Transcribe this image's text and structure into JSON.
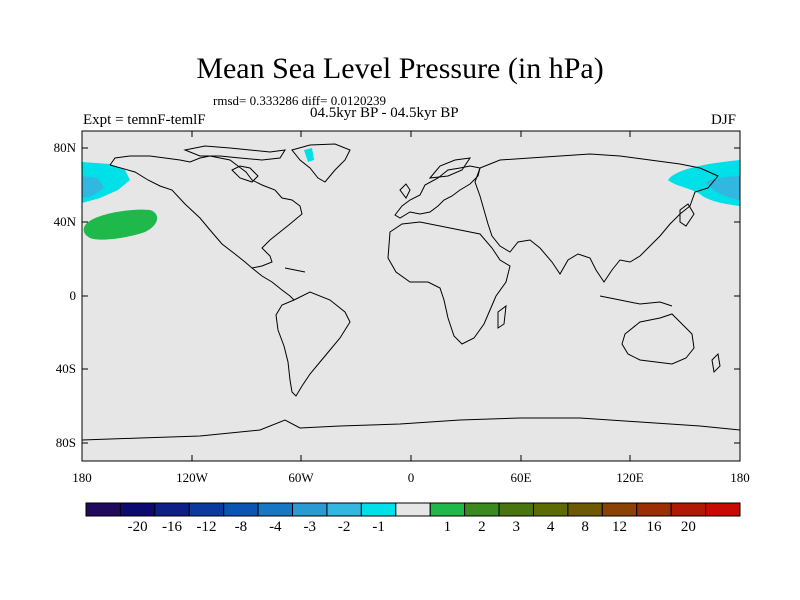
{
  "title": "Mean Sea Level Pressure (in hPa)",
  "stats": "rmsd= 0.333286 diff= 0.0120239",
  "subtitle": "04.5kyr BP - 04.5kyr BP",
  "left_label": "Expt = temnF-temlF",
  "right_label": "DJF",
  "lat_labels": [
    "80N",
    "40N",
    "0",
    "40S",
    "80S"
  ],
  "lon_labels": [
    "180",
    "120W",
    "60W",
    "0",
    "60E",
    "120E",
    "180"
  ],
  "colorbar": {
    "colors": [
      "#200a5c",
      "#0a0a70",
      "#0f1f88",
      "#0a3aa0",
      "#0a55b3",
      "#1478c4",
      "#2a9ad2",
      "#32b8e0",
      "#00e0e8",
      "#e6e6e6",
      "#1fb84a",
      "#3b8a20",
      "#4a7410",
      "#5d6b05",
      "#6e5a05",
      "#8a4305",
      "#9c2e05",
      "#b01a05",
      "#c80a05"
    ],
    "labels": [
      "-20",
      "-16",
      "-12",
      "-8",
      "-4",
      "-3",
      "-2",
      "-1",
      "1",
      "2",
      "3",
      "4",
      "8",
      "12",
      "16",
      "20"
    ]
  },
  "field_colors": {
    "ocean_background": "#e6e6e6",
    "cyan_region": "#00e0e8",
    "light_blue_region": "#32b8e0",
    "green_region": "#1fb84a"
  }
}
